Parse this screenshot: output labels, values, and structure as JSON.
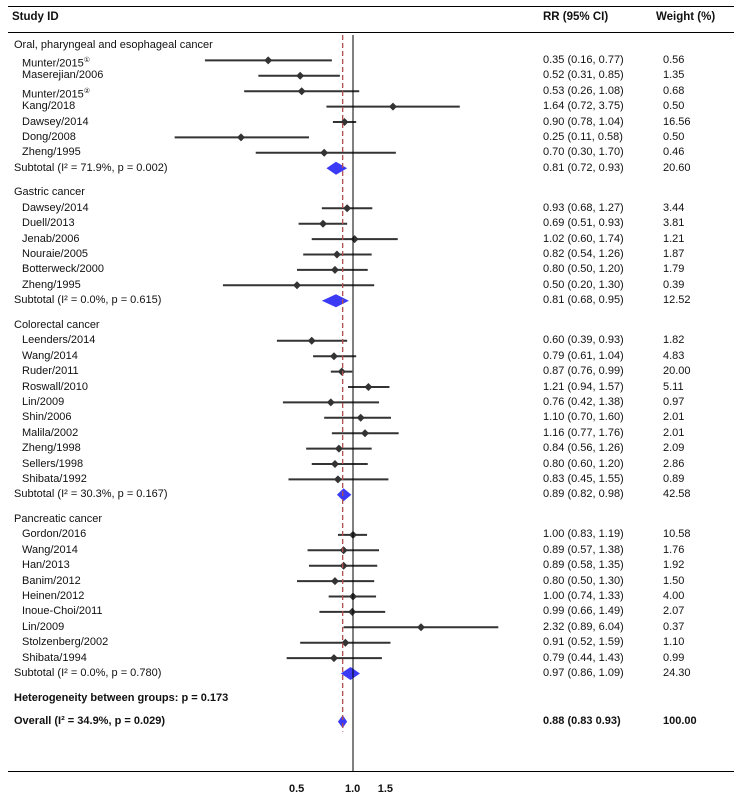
{
  "header": {
    "study_id": "Study ID",
    "rr": "RR (95% CI)",
    "weight": "Weight (%)"
  },
  "chart_data": {
    "type": "forest",
    "x_ticks": [
      {
        "value": 0.5,
        "label": "0.5"
      },
      {
        "value": 1.0,
        "label": "1.0"
      },
      {
        "value": 1.5,
        "label": "1.5"
      }
    ],
    "null_line": 1.0,
    "overall_line": 0.88,
    "groups": [
      {
        "name": "Oral, pharyngeal and esophageal cancer",
        "studies": [
          {
            "label": "Munter/2015",
            "sup": "①",
            "rr": 0.35,
            "lo": 0.16,
            "hi": 0.77,
            "rr_text": "0.35 (0.16, 0.77)",
            "weight": "0.56"
          },
          {
            "label": "Maserejian/2006",
            "sup": "",
            "rr": 0.52,
            "lo": 0.31,
            "hi": 0.85,
            "rr_text": "0.52 (0.31, 0.85)",
            "weight": "1.35"
          },
          {
            "label": "Munter/2015",
            "sup": "②",
            "rr": 0.53,
            "lo": 0.26,
            "hi": 1.08,
            "rr_text": "0.53 (0.26, 1.08)",
            "weight": "0.68"
          },
          {
            "label": "Kang/2018",
            "sup": "",
            "rr": 1.64,
            "lo": 0.72,
            "hi": 3.75,
            "rr_text": "1.64 (0.72, 3.75)",
            "weight": "0.50"
          },
          {
            "label": "Dawsey/2014",
            "sup": "",
            "rr": 0.9,
            "lo": 0.78,
            "hi": 1.04,
            "rr_text": "0.90 (0.78, 1.04)",
            "weight": "16.56"
          },
          {
            "label": "Dong/2008",
            "sup": "",
            "rr": 0.25,
            "lo": 0.11,
            "hi": 0.58,
            "rr_text": "0.25 (0.11, 0.58)",
            "weight": "0.50"
          },
          {
            "label": "Zheng/1995",
            "sup": "",
            "rr": 0.7,
            "lo": 0.3,
            "hi": 1.7,
            "rr_text": "0.70 (0.30, 1.70)",
            "weight": "0.46"
          }
        ],
        "subtotal": {
          "label": "Subtotal (I² = 71.9%, p = 0.002)",
          "rr": 0.81,
          "lo": 0.72,
          "hi": 0.93,
          "rr_text": "0.81 (0.72, 0.93)",
          "weight": "20.60"
        }
      },
      {
        "name": "Gastric cancer",
        "studies": [
          {
            "label": "Dawsey/2014",
            "sup": "",
            "rr": 0.93,
            "lo": 0.68,
            "hi": 1.27,
            "rr_text": "0.93 (0.68, 1.27)",
            "weight": "3.44"
          },
          {
            "label": "Duell/2013",
            "sup": "",
            "rr": 0.69,
            "lo": 0.51,
            "hi": 0.93,
            "rr_text": "0.69 (0.51, 0.93)",
            "weight": "3.81"
          },
          {
            "label": "Jenab/2006",
            "sup": "",
            "rr": 1.02,
            "lo": 0.6,
            "hi": 1.74,
            "rr_text": "1.02 (0.60, 1.74)",
            "weight": "1.21"
          },
          {
            "label": "Nouraie/2005",
            "sup": "",
            "rr": 0.82,
            "lo": 0.54,
            "hi": 1.26,
            "rr_text": "0.82 (0.54, 1.26)",
            "weight": "1.87"
          },
          {
            "label": "Botterweck/2000",
            "sup": "",
            "rr": 0.8,
            "lo": 0.5,
            "hi": 1.2,
            "rr_text": "0.80 (0.50, 1.20)",
            "weight": "1.79"
          },
          {
            "label": "Zheng/1995",
            "sup": "",
            "rr": 0.5,
            "lo": 0.2,
            "hi": 1.3,
            "rr_text": "0.50 (0.20, 1.30)",
            "weight": "0.39"
          }
        ],
        "subtotal": {
          "label": "Subtotal (I² = 0.0%, p = 0.615)",
          "rr": 0.81,
          "lo": 0.68,
          "hi": 0.95,
          "rr_text": "0.81 (0.68, 0.95)",
          "weight": "12.52"
        }
      },
      {
        "name": "Colorectal cancer",
        "studies": [
          {
            "label": "Leenders/2014",
            "sup": "",
            "rr": 0.6,
            "lo": 0.39,
            "hi": 0.93,
            "rr_text": "0.60 (0.39, 0.93)",
            "weight": "1.82"
          },
          {
            "label": "Wang/2014",
            "sup": "",
            "rr": 0.79,
            "lo": 0.61,
            "hi": 1.04,
            "rr_text": "0.79 (0.61, 1.04)",
            "weight": "4.83"
          },
          {
            "label": "Ruder/2011",
            "sup": "",
            "rr": 0.87,
            "lo": 0.76,
            "hi": 0.99,
            "rr_text": "0.87 (0.76, 0.99)",
            "weight": "20.00"
          },
          {
            "label": "Roswall/2010",
            "sup": "",
            "rr": 1.21,
            "lo": 0.94,
            "hi": 1.57,
            "rr_text": "1.21 (0.94, 1.57)",
            "weight": "5.11"
          },
          {
            "label": "Lin/2009",
            "sup": "",
            "rr": 0.76,
            "lo": 0.42,
            "hi": 1.38,
            "rr_text": "0.76 (0.42, 1.38)",
            "weight": "0.97"
          },
          {
            "label": "Shin/2006",
            "sup": "",
            "rr": 1.1,
            "lo": 0.7,
            "hi": 1.6,
            "rr_text": "1.10 (0.70, 1.60)",
            "weight": "2.01"
          },
          {
            "label": "Malila/2002",
            "sup": "",
            "rr": 1.16,
            "lo": 0.77,
            "hi": 1.76,
            "rr_text": "1.16 (0.77, 1.76)",
            "weight": "2.01"
          },
          {
            "label": "Zheng/1998",
            "sup": "",
            "rr": 0.84,
            "lo": 0.56,
            "hi": 1.26,
            "rr_text": "0.84 (0.56, 1.26)",
            "weight": "2.09"
          },
          {
            "label": "Sellers/1998",
            "sup": "",
            "rr": 0.8,
            "lo": 0.6,
            "hi": 1.2,
            "rr_text": "0.80 (0.60, 1.20)",
            "weight": "2.86"
          },
          {
            "label": "Shibata/1992",
            "sup": "",
            "rr": 0.83,
            "lo": 0.45,
            "hi": 1.55,
            "rr_text": "0.83 (0.45, 1.55)",
            "weight": "0.89"
          }
        ],
        "subtotal": {
          "label": "Subtotal (I² = 30.3%, p = 0.167)",
          "rr": 0.89,
          "lo": 0.82,
          "hi": 0.98,
          "rr_text": "0.89 (0.82, 0.98)",
          "weight": "42.58"
        }
      },
      {
        "name": "Pancreatic cancer",
        "studies": [
          {
            "label": "Gordon/2016",
            "sup": "",
            "rr": 1.0,
            "lo": 0.83,
            "hi": 1.19,
            "rr_text": "1.00 (0.83, 1.19)",
            "weight": "10.58"
          },
          {
            "label": "Wang/2014",
            "sup": "",
            "rr": 0.89,
            "lo": 0.57,
            "hi": 1.38,
            "rr_text": "0.89 (0.57, 1.38)",
            "weight": "1.76"
          },
          {
            "label": "Han/2013",
            "sup": "",
            "rr": 0.89,
            "lo": 0.58,
            "hi": 1.35,
            "rr_text": "0.89 (0.58, 1.35)",
            "weight": "1.92"
          },
          {
            "label": "Banim/2012",
            "sup": "",
            "rr": 0.8,
            "lo": 0.5,
            "hi": 1.3,
            "rr_text": "0.80 (0.50, 1.30)",
            "weight": "1.50"
          },
          {
            "label": "Heinen/2012",
            "sup": "",
            "rr": 1.0,
            "lo": 0.74,
            "hi": 1.33,
            "rr_text": "1.00 (0.74, 1.33)",
            "weight": "4.00"
          },
          {
            "label": "Inoue-Choi/2011",
            "sup": "",
            "rr": 0.99,
            "lo": 0.66,
            "hi": 1.49,
            "rr_text": "0.99 (0.66, 1.49)",
            "weight": "2.07"
          },
          {
            "label": "Lin/2009",
            "sup": "",
            "rr": 2.32,
            "lo": 0.89,
            "hi": 6.04,
            "rr_text": "2.32 (0.89, 6.04)",
            "weight": "0.37"
          },
          {
            "label": "Stolzenberg/2002",
            "sup": "",
            "rr": 0.91,
            "lo": 0.52,
            "hi": 1.59,
            "rr_text": "0.91 (0.52, 1.59)",
            "weight": "1.10"
          },
          {
            "label": "Shibata/1994",
            "sup": "",
            "rr": 0.79,
            "lo": 0.44,
            "hi": 1.43,
            "rr_text": "0.79 (0.44, 1.43)",
            "weight": "0.99"
          }
        ],
        "subtotal": {
          "label": "Subtotal (I² = 0.0%, p = 0.780)",
          "rr": 0.97,
          "lo": 0.86,
          "hi": 1.09,
          "rr_text": "0.97 (0.86, 1.09)",
          "weight": "24.30"
        }
      }
    ],
    "heterogeneity": "Heterogeneity between groups: p = 0.173",
    "overall": {
      "label": "Overall (I² = 34.9%, p = 0.029)",
      "rr": 0.88,
      "lo": 0.83,
      "hi": 0.93,
      "rr_text": "0.88 (0.83 0.93)",
      "weight": "100.00"
    },
    "colors": {
      "diamond": "#3b3bf5",
      "overall_line": "#b05050",
      "ci_line": "#333333",
      "marker": "#333333"
    }
  }
}
